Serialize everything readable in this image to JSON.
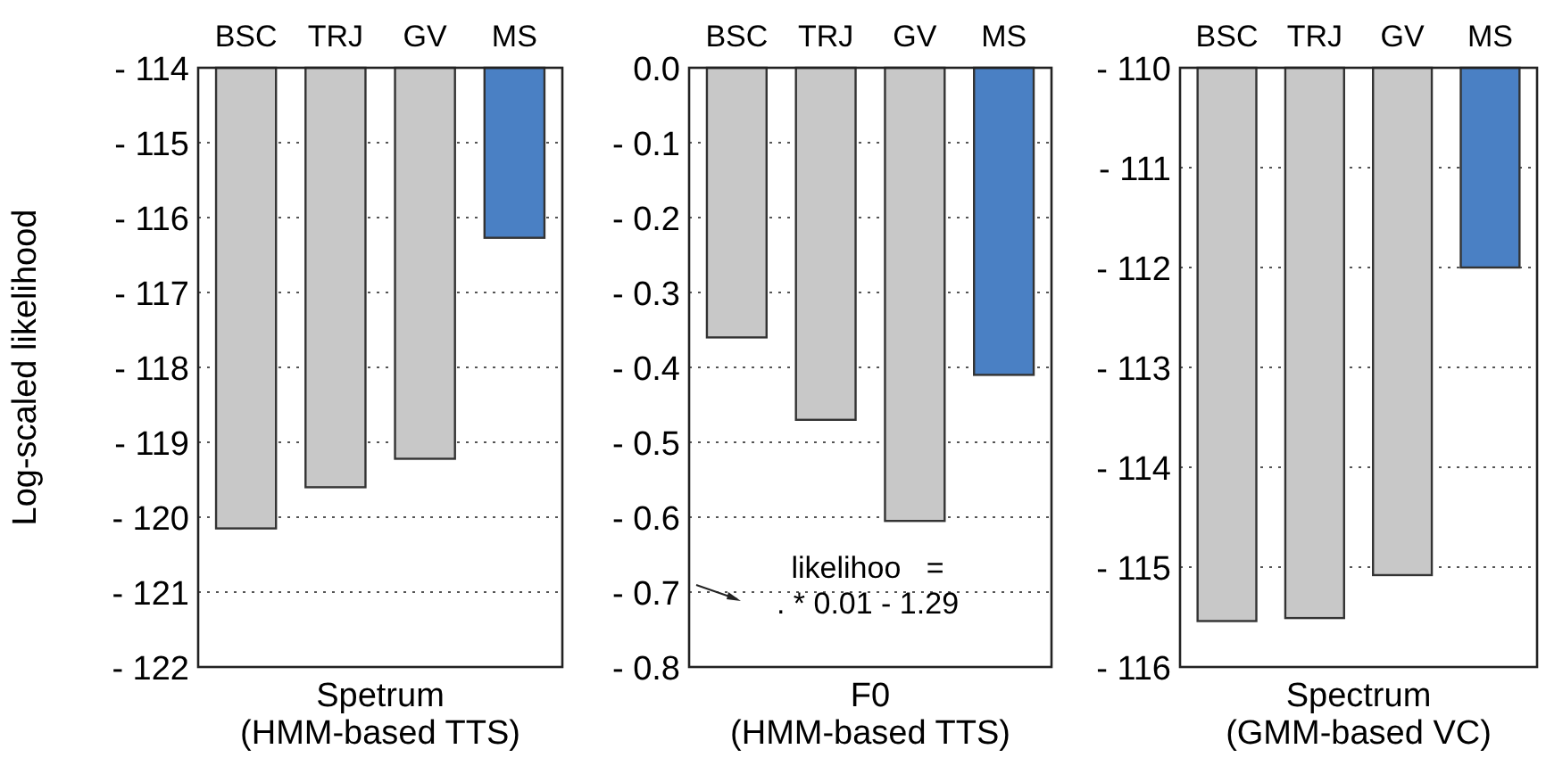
{
  "chart_data": [
    {
      "type": "bar",
      "ylabel": "Log-scaled likelihood",
      "xlabel": "Spetrum\n(HMM-based TTS)",
      "categories": [
        "BSC",
        "TRJ",
        "GV",
        "MS"
      ],
      "base": [
        -114,
        -114,
        -114,
        -114
      ],
      "values": [
        -6.15,
        -5.6,
        -5.22,
        -2.27
      ],
      "colors": [
        "#c8c8c8",
        "#c8c8c8",
        "#c8c8c8",
        "#4a80c4"
      ],
      "ylim": [
        -122,
        -114
      ],
      "yticks": [
        {
          "value": -114,
          "label": "- 114"
        },
        {
          "value": -115,
          "label": "- 115"
        },
        {
          "value": -116,
          "label": "- 116"
        },
        {
          "value": -117,
          "label": "- 117"
        },
        {
          "value": -118,
          "label": "- 118"
        },
        {
          "value": -119,
          "label": "- 119"
        },
        {
          "value": -120,
          "label": "- 120"
        },
        {
          "value": -121,
          "label": "- 121"
        },
        {
          "value": -122,
          "label": "- 122"
        }
      ],
      "grid": "y"
    },
    {
      "type": "bar",
      "xlabel": "F0\n(HMM-based TTS)",
      "categories": [
        "BSC",
        "TRJ",
        "GV",
        "MS"
      ],
      "values": [
        -0.36,
        -0.47,
        -0.605,
        -0.41
      ],
      "colors": [
        "#c8c8c8",
        "#c8c8c8",
        "#c8c8c8",
        "#4a80c4"
      ],
      "ylim": [
        -0.8,
        0
      ],
      "yticks": [
        {
          "value": 0,
          "label": "0.0"
        },
        {
          "value": -0.1,
          "label": "- 0.1"
        },
        {
          "value": -0.2,
          "label": "- 0.2"
        },
        {
          "value": -0.3,
          "label": "- 0.3"
        },
        {
          "value": -0.4,
          "label": "- 0.4"
        },
        {
          "value": -0.5,
          "label": "- 0.5"
        },
        {
          "value": -0.6,
          "label": "- 0.6"
        },
        {
          "value": -0.7,
          "label": "- 0.7"
        },
        {
          "value": -0.8,
          "label": "- 0.8"
        }
      ],
      "grid": "y",
      "annotations": [
        "likelihoo   =\n. * 0.01 - 1.29"
      ]
    },
    {
      "type": "bar",
      "xlabel": "Spectrum\n(GMM-based VC)",
      "categories": [
        "BSC",
        "TRJ",
        "GV",
        "MS"
      ],
      "base": [
        -110,
        -110,
        -110,
        -110
      ],
      "values": [
        -5.54,
        -5.51,
        -5.08,
        -2.0
      ],
      "colors": [
        "#c8c8c8",
        "#c8c8c8",
        "#c8c8c8",
        "#4a80c4"
      ],
      "ylim": [
        -116,
        -110
      ],
      "yticks": [
        {
          "value": -110,
          "label": "- 110"
        },
        {
          "value": -111,
          "label": "- 111"
        },
        {
          "value": -112,
          "label": "- 112"
        },
        {
          "value": -113,
          "label": "- 113"
        },
        {
          "value": -114,
          "label": "- 114"
        },
        {
          "value": -115,
          "label": "- 115"
        },
        {
          "value": -116,
          "label": "- 116"
        }
      ],
      "grid": "y"
    }
  ]
}
